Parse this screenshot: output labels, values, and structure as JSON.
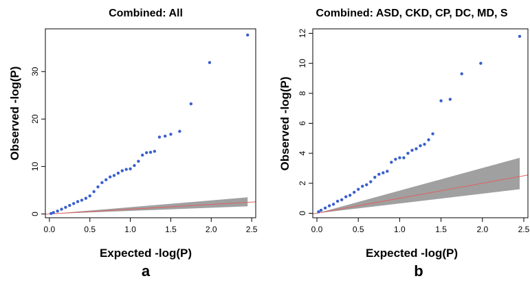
{
  "figure": {
    "panels": [
      {
        "title": "Combined: All",
        "letter": "a",
        "xlabel": "Expected -log(P)",
        "ylabel": "Observed -log(P)"
      },
      {
        "title": "Combined: ASD, CKD, CP, DC, MD, S",
        "letter": "b",
        "xlabel": "Expected -log(P)",
        "ylabel": "Observed -log(P)"
      }
    ],
    "colors": {
      "points": "#3a5fcd",
      "ci_band": "#a0a0a0",
      "reference_line": "#e06060",
      "axis": "#000000"
    }
  },
  "chart_data": [
    {
      "type": "scatter",
      "title": "Combined: All",
      "xlabel": "Expected -log(P)",
      "ylabel": "Observed -log(P)",
      "xlim": [
        -0.05,
        2.55
      ],
      "ylim": [
        -0.8,
        39
      ],
      "xticks": [
        "0.0",
        "0.5",
        "1.0",
        "1.5",
        "2.0",
        "2.5"
      ],
      "yticks": [
        "0",
        "10",
        "20",
        "30"
      ],
      "reference_line": "y = x",
      "ci_band": {
        "x": [
          0,
          2.45
        ],
        "lower": [
          0,
          1.6
        ],
        "upper": [
          0,
          3.5
        ]
      },
      "points": [
        [
          2.45,
          37.7
        ],
        [
          1.98,
          31.9
        ],
        [
          1.75,
          23.2
        ],
        [
          1.61,
          17.4
        ],
        [
          1.5,
          16.8
        ],
        [
          1.43,
          16.4
        ],
        [
          1.36,
          16.2
        ],
        [
          1.3,
          13.2
        ],
        [
          1.25,
          13.0
        ],
        [
          1.2,
          12.9
        ],
        [
          1.15,
          12.4
        ],
        [
          1.1,
          11.1
        ],
        [
          1.05,
          10.2
        ],
        [
          1.0,
          9.5
        ],
        [
          0.95,
          9.4
        ],
        [
          0.9,
          9.1
        ],
        [
          0.85,
          8.6
        ],
        [
          0.8,
          8.1
        ],
        [
          0.75,
          7.8
        ],
        [
          0.7,
          7.2
        ],
        [
          0.65,
          6.6
        ],
        [
          0.6,
          5.7
        ],
        [
          0.55,
          4.7
        ],
        [
          0.5,
          3.8
        ],
        [
          0.45,
          3.3
        ],
        [
          0.4,
          2.9
        ],
        [
          0.35,
          2.6
        ],
        [
          0.3,
          2.2
        ],
        [
          0.25,
          1.8
        ],
        [
          0.2,
          1.4
        ],
        [
          0.15,
          1.0
        ],
        [
          0.1,
          0.6
        ],
        [
          0.05,
          0.3
        ],
        [
          0.02,
          0.1
        ]
      ]
    },
    {
      "type": "scatter",
      "title": "Combined: ASD, CKD, CP, DC, MD, S",
      "xlabel": "Expected -log(P)",
      "ylabel": "Observed -log(P)",
      "xlim": [
        -0.05,
        2.55
      ],
      "ylim": [
        -0.3,
        12.3
      ],
      "xticks": [
        "0.0",
        "0.5",
        "1.0",
        "1.5",
        "2.0",
        "2.5"
      ],
      "yticks": [
        "0",
        "2",
        "4",
        "6",
        "8",
        "10",
        "12"
      ],
      "reference_line": "y = x",
      "ci_band": {
        "x": [
          0,
          2.45
        ],
        "lower": [
          0,
          1.6
        ],
        "upper": [
          0,
          3.7
        ]
      },
      "points": [
        [
          2.45,
          11.8
        ],
        [
          1.98,
          10.0
        ],
        [
          1.75,
          9.3
        ],
        [
          1.61,
          7.6
        ],
        [
          1.5,
          7.5
        ],
        [
          1.4,
          5.3
        ],
        [
          1.35,
          4.9
        ],
        [
          1.3,
          4.6
        ],
        [
          1.25,
          4.5
        ],
        [
          1.2,
          4.3
        ],
        [
          1.15,
          4.2
        ],
        [
          1.1,
          4.0
        ],
        [
          1.05,
          3.7
        ],
        [
          1.0,
          3.7
        ],
        [
          0.95,
          3.6
        ],
        [
          0.9,
          3.4
        ],
        [
          0.85,
          2.8
        ],
        [
          0.8,
          2.7
        ],
        [
          0.75,
          2.6
        ],
        [
          0.7,
          2.4
        ],
        [
          0.65,
          2.1
        ],
        [
          0.6,
          1.9
        ],
        [
          0.55,
          1.8
        ],
        [
          0.5,
          1.6
        ],
        [
          0.45,
          1.4
        ],
        [
          0.4,
          1.2
        ],
        [
          0.35,
          1.1
        ],
        [
          0.3,
          0.9
        ],
        [
          0.25,
          0.8
        ],
        [
          0.2,
          0.6
        ],
        [
          0.15,
          0.5
        ],
        [
          0.1,
          0.35
        ],
        [
          0.05,
          0.2
        ],
        [
          0.02,
          0.1
        ]
      ]
    }
  ]
}
